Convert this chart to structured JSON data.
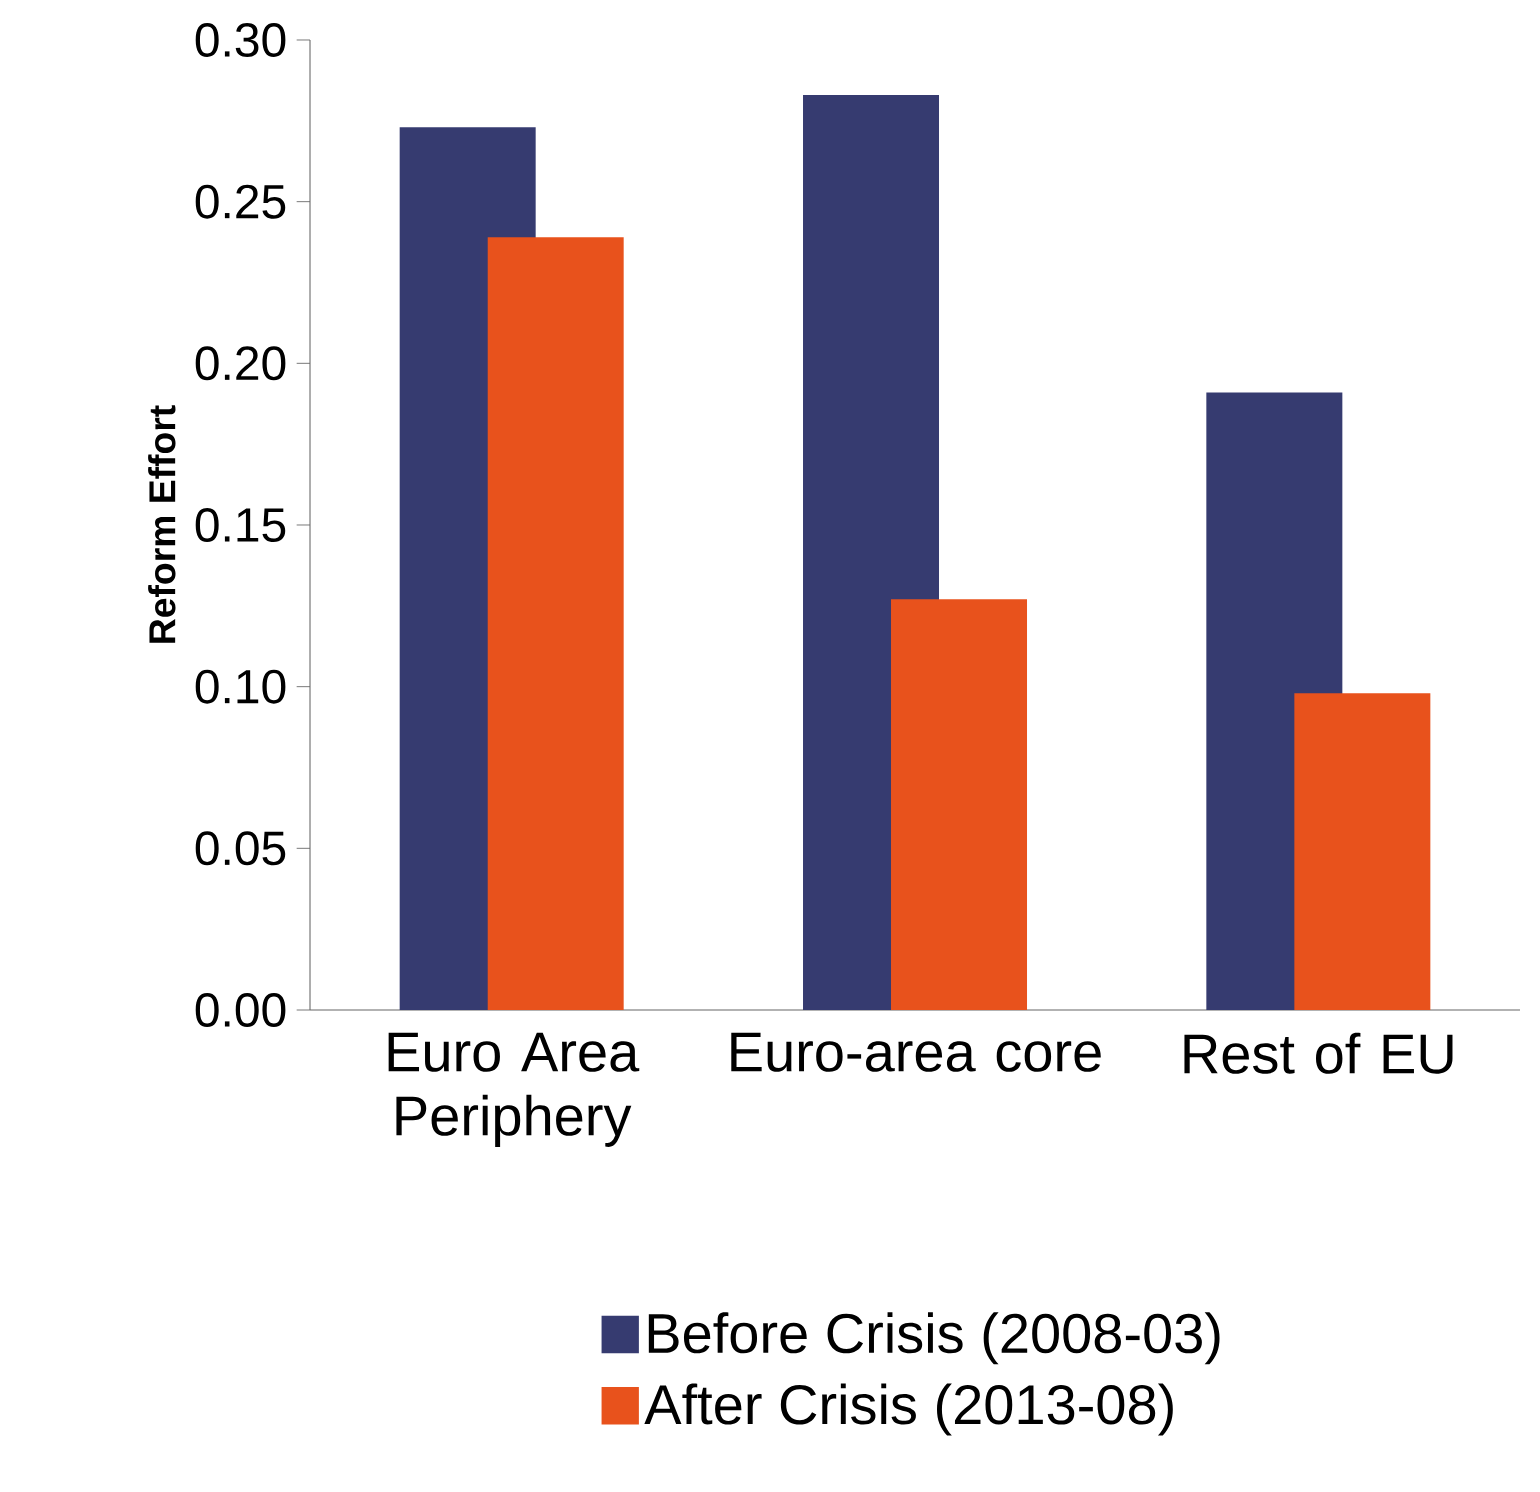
{
  "chart_data": {
    "type": "bar",
    "ylabel": "Reform Effort",
    "categories": [
      "Euro Area Periphery",
      "Euro-area core",
      "Rest of EU"
    ],
    "series": [
      {
        "name": "Before Crisis (2008-03)",
        "color": "#363b70",
        "values": [
          0.273,
          0.283,
          0.191
        ]
      },
      {
        "name": "After Crisis (2013-08)",
        "color": "#e8521c",
        "values": [
          0.239,
          0.127,
          0.098
        ]
      }
    ],
    "ylim": [
      0,
      0.3
    ],
    "yticks": [
      {
        "value": 0,
        "label": "0.00"
      },
      {
        "value": 0.05,
        "label": "0.05"
      },
      {
        "value": 0.1,
        "label": "0.10"
      },
      {
        "value": 0.15,
        "label": "0.15"
      },
      {
        "value": 0.2,
        "label": "0.20"
      },
      {
        "value": 0.25,
        "label": "0.25"
      },
      {
        "value": 0.3,
        "label": "0.30"
      }
    ],
    "grid": false,
    "legend": "bottom"
  }
}
